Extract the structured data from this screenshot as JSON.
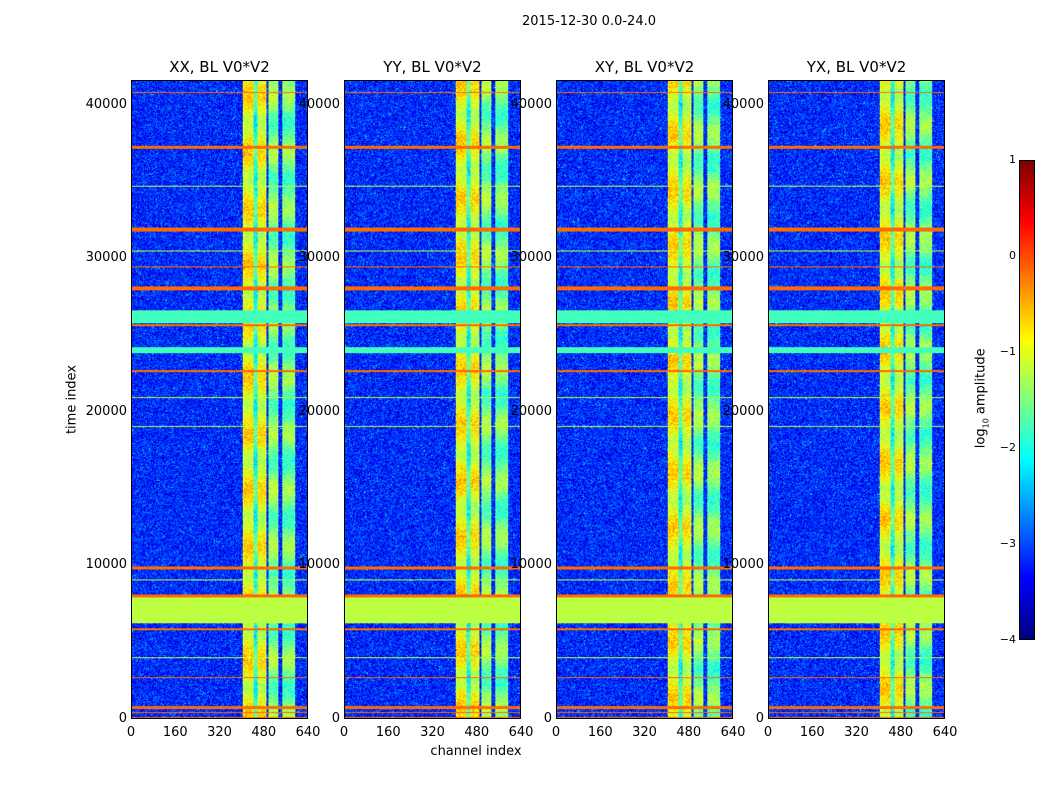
{
  "chart_data": {
    "type": "heatmap",
    "title": "2015-12-30 0.0-24.0",
    "xlabel": "channel index",
    "ylabel": "time index",
    "xlim": [
      0,
      640
    ],
    "ylim": [
      0,
      41600
    ],
    "xticks": [
      "0",
      "160",
      "320",
      "480",
      "640"
    ],
    "yticks": [
      "0",
      "10000",
      "20000",
      "30000",
      "40000"
    ],
    "panels": [
      {
        "title": "XX, BL V0*V2"
      },
      {
        "title": "YY, BL V0*V2"
      },
      {
        "title": "XY, BL V0*V2"
      },
      {
        "title": "YX, BL V0*V2"
      }
    ],
    "colorbar": {
      "label_prefix": "log",
      "label_sub": "10",
      "label_suffix": " amplitude",
      "range": [
        -4,
        1
      ],
      "ticks": [
        "1",
        "0",
        "−1",
        "−2",
        "−3",
        "−4"
      ],
      "colormap": "jet"
    },
    "background_level": -3.2,
    "channel_bands": [
      {
        "from": 405,
        "to": 445,
        "level": -0.9
      },
      {
        "from": 445,
        "to": 460,
        "level": -1.9
      },
      {
        "from": 460,
        "to": 490,
        "level": -1.0
      },
      {
        "from": 500,
        "to": 535,
        "level": -1.5
      },
      {
        "from": 550,
        "to": 595,
        "level": -1.6
      }
    ],
    "time_flags": [
      {
        "from": 6200,
        "to": 7900,
        "level": -1.2
      },
      {
        "from": 7900,
        "to": 8100,
        "level": -0.15
      },
      {
        "from": 9700,
        "to": 9900,
        "level": -0.15
      },
      {
        "from": 5750,
        "to": 5850,
        "level": -0.15
      },
      {
        "from": 2600,
        "to": 2680,
        "level": -0.15
      },
      {
        "from": 600,
        "to": 750,
        "level": -0.15
      },
      {
        "from": 300,
        "to": 380,
        "level": -0.15
      },
      {
        "from": 0,
        "to": 80,
        "level": -0.15
      },
      {
        "from": 23800,
        "to": 24250,
        "level": -1.8
      },
      {
        "from": 25800,
        "to": 26600,
        "level": -1.8
      },
      {
        "from": 25600,
        "to": 25700,
        "level": -0.15
      },
      {
        "from": 27900,
        "to": 28200,
        "level": -0.15
      },
      {
        "from": 29400,
        "to": 29500,
        "level": -0.15
      },
      {
        "from": 31800,
        "to": 32050,
        "level": -0.15
      },
      {
        "from": 37200,
        "to": 37400,
        "level": -0.15
      },
      {
        "from": 40800,
        "to": 40900,
        "level": -0.15
      },
      {
        "from": 3900,
        "to": 3960,
        "level": -1.2
      },
      {
        "from": 9000,
        "to": 9060,
        "level": -1.2
      },
      {
        "from": 19000,
        "to": 19080,
        "level": -1.2
      },
      {
        "from": 20900,
        "to": 20960,
        "level": -1.2
      },
      {
        "from": 34700,
        "to": 34760,
        "level": -1.2
      },
      {
        "from": 22600,
        "to": 22700,
        "level": -0.15
      },
      {
        "from": 30500,
        "to": 30560,
        "level": -1.2
      }
    ]
  }
}
